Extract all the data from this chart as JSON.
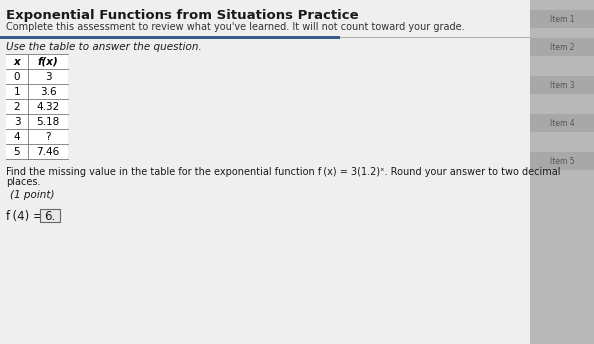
{
  "title": "Exponential Functions from Situations Practice",
  "subtitle": "Complete this assessment to review what you've learned. It will not count toward your grade.",
  "instruction": "Use the table to answer the question.",
  "table_headers": [
    "x",
    "f(x)"
  ],
  "table_data": [
    [
      "0",
      "3"
    ],
    [
      "1",
      "3.6"
    ],
    [
      "2",
      "4.32"
    ],
    [
      "3",
      "5.18"
    ],
    [
      "4",
      "?"
    ],
    [
      "5",
      "7.46"
    ]
  ],
  "question_line1": "Find the missing value in the table for the exponential function f (x) = 3(1.2)ˣ. Round your answer to two decimal",
  "question_line2": "places.",
  "point_label": "(1 point)",
  "answer_prefix": "f (4) =",
  "answer_value": "6.",
  "bg_color": "#cbcbcb",
  "content_bg": "#e0e0e0",
  "white_bg": "#f0efef",
  "table_bg": "#ffffff",
  "title_color": "#1a1a1a",
  "text_color": "#1a1a1a",
  "sidebar_bg": "#b8b8b8",
  "sidebar_item_bg": "#a8a8a8",
  "sidebar_item_text": "#888888",
  "blue_bar_color": "#3a5a8a",
  "answer_box_color": "#e8e8e8"
}
